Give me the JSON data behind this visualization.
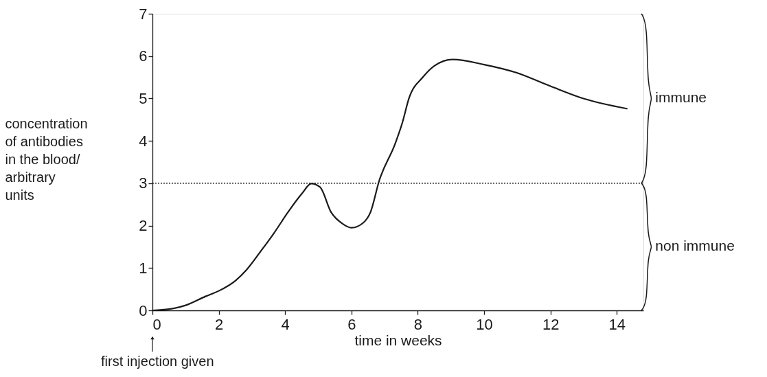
{
  "chart_data": {
    "type": "line",
    "xlabel": "time in weeks",
    "ylabel": "concentration of antibodies in the blood/ arbitrary units",
    "x": [
      0,
      0.5,
      1,
      1.6,
      2,
      2.5,
      2.84,
      3.26,
      3.67,
      4.08,
      4.5,
      4.79,
      5.05,
      5.39,
      5.74,
      6,
      6.36,
      6.57,
      6.84,
      7.32,
      7.53,
      7.74,
      8.15,
      8.5,
      9.05,
      10,
      10.97,
      12,
      13.03,
      14.3
    ],
    "series": [
      {
        "color": "#1a1a1a",
        "values": [
          0,
          0.03,
          0.12,
          0.33,
          0.46,
          0.7,
          0.96,
          1.39,
          1.83,
          2.31,
          2.75,
          2.99,
          2.91,
          2.31,
          2.04,
          1.95,
          2.07,
          2.31,
          3.07,
          3.94,
          4.42,
          5.02,
          5.5,
          5.77,
          5.92,
          5.8,
          5.61,
          5.29,
          4.99,
          4.76
        ]
      }
    ],
    "xlim": [
      0,
      14.8
    ],
    "xticks": [
      0,
      2,
      4,
      6,
      8,
      10,
      12,
      14
    ],
    "ylim": [
      0,
      7
    ],
    "yticks": [
      0,
      1,
      2,
      3,
      4,
      5,
      6,
      7
    ],
    "ref_lines": [
      {
        "axis": "y",
        "value": 3,
        "line_style": "dotted",
        "color": "#1a1a1a"
      }
    ],
    "annotations": [
      {
        "text": "first injection given",
        "x": 0
      },
      "immune",
      "non immune"
    ],
    "marker": "none",
    "line_style": "solid"
  }
}
